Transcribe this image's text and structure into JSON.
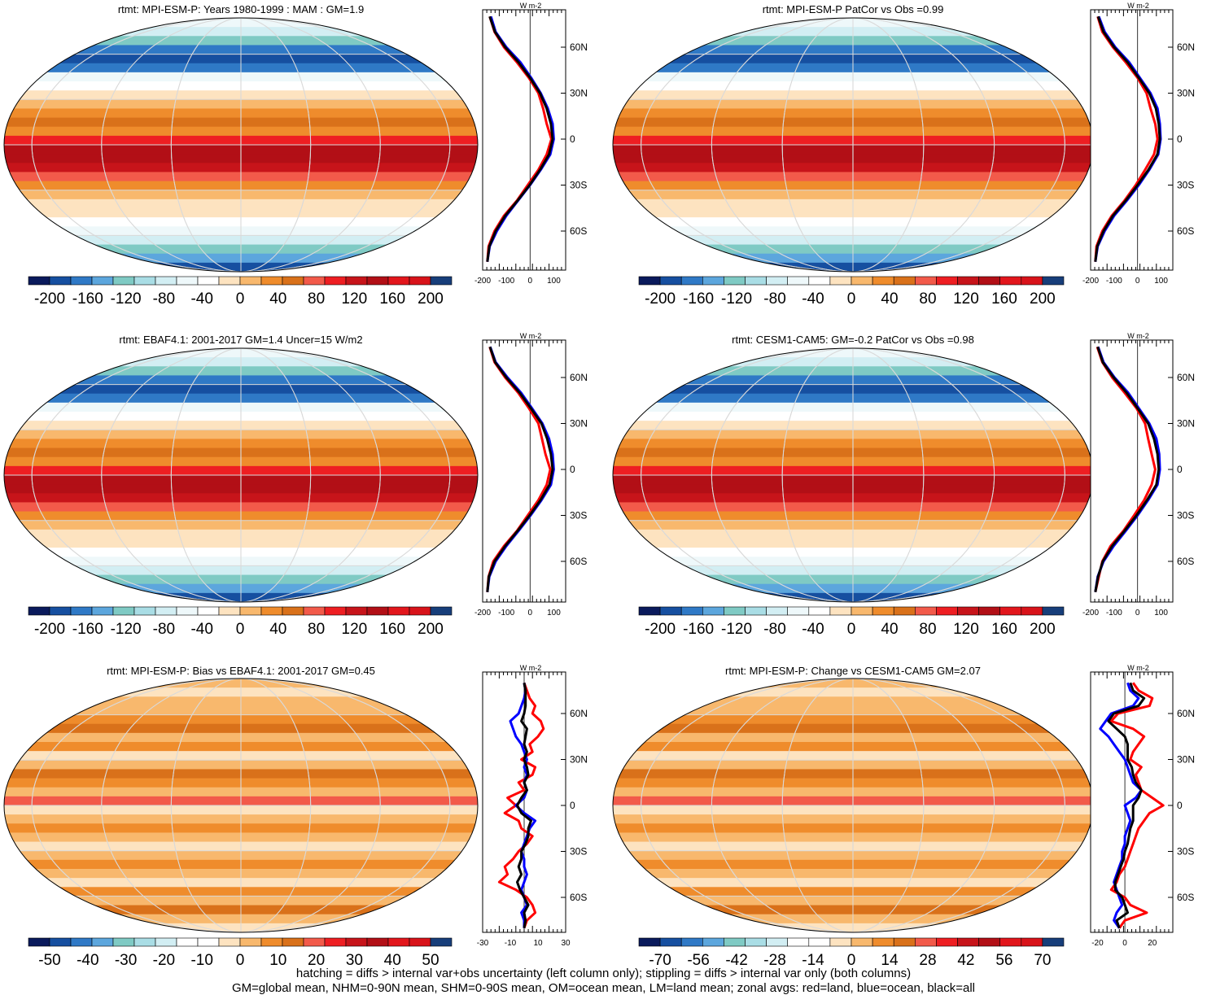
{
  "palette": {
    "abs": [
      "#0a1a5c",
      "#164fa0",
      "#2f79c6",
      "#5ca6dd",
      "#7fcac4",
      "#a9dde5",
      "#d2eef3",
      "#eef8fa",
      "#ffffff",
      "#fde3c0",
      "#f8b86d",
      "#ef8c2c",
      "#d9711a",
      "#f25a4a",
      "#ee1e22",
      "#c7141a",
      "#b20f16",
      "#e2161c",
      "#d8131a",
      "#173e7a"
    ],
    "diff": [
      "#0a1a5c",
      "#164fa0",
      "#2f79c6",
      "#5ca6dd",
      "#7fcac4",
      "#a9dde5",
      "#d2eef3",
      "#ffffff",
      "#ffffff",
      "#fde3c0",
      "#f8b86d",
      "#ef8c2c",
      "#d9711a",
      "#f25a4a",
      "#ee1e22",
      "#c7141a",
      "#b20f16",
      "#e2161c",
      "#d8131a",
      "#173e7a"
    ],
    "zonal": {
      "land": "#ff0000",
      "ocean": "#0000ff",
      "all": "#000000"
    }
  },
  "panels": [
    {
      "id": "p1",
      "title": "rtmt: MPI-ESM-P: Years 1980-1999 : MAM : GM=1.9",
      "colorbar_ticks": [
        "-200",
        "-160",
        "-120",
        "-80",
        "-40",
        "0",
        "40",
        "80",
        "120",
        "160",
        "200"
      ],
      "zonal_ticks": [
        "-200",
        "-100",
        "0",
        "100"
      ],
      "zonal_unit": "W m-2",
      "lat_labels": [
        "60N",
        "30N",
        "0",
        "30S",
        "60S"
      ],
      "scale": "abs"
    },
    {
      "id": "p2",
      "title": "rtmt: MPI-ESM-P PatCor vs Obs =0.99",
      "colorbar_ticks": [
        "-200",
        "-160",
        "-120",
        "-80",
        "-40",
        "0",
        "40",
        "80",
        "120",
        "160",
        "200"
      ],
      "zonal_ticks": [
        "-200",
        "-100",
        "0",
        "100"
      ],
      "zonal_unit": "W m-2",
      "lat_labels": [
        "60N",
        "30N",
        "0",
        "30S",
        "60S"
      ],
      "scale": "abs"
    },
    {
      "id": "p3",
      "title": "rtmt: EBAF4.1: 2001-2017 GM=1.4 Uncer=15 W/m2",
      "colorbar_ticks": [
        "-200",
        "-160",
        "-120",
        "-80",
        "-40",
        "0",
        "40",
        "80",
        "120",
        "160",
        "200"
      ],
      "zonal_ticks": [
        "-200",
        "-100",
        "0",
        "100"
      ],
      "zonal_unit": "W m-2",
      "lat_labels": [
        "60N",
        "30N",
        "0",
        "30S",
        "60S"
      ],
      "scale": "abs"
    },
    {
      "id": "p4",
      "title": "rtmt: CESM1-CAM5: GM=-0.2 PatCor vs Obs =0.98",
      "colorbar_ticks": [
        "-200",
        "-160",
        "-120",
        "-80",
        "-40",
        "0",
        "40",
        "80",
        "120",
        "160",
        "200"
      ],
      "zonal_ticks": [
        "-200",
        "-100",
        "0",
        "100"
      ],
      "zonal_unit": "W m-2",
      "lat_labels": [
        "60N",
        "30N",
        "0",
        "30S",
        "60S"
      ],
      "scale": "abs"
    },
    {
      "id": "p5",
      "title": "rtmt: MPI-ESM-P: Bias vs EBAF4.1: 2001-2017 GM=0.45",
      "colorbar_ticks": [
        "-50",
        "-40",
        "-30",
        "-20",
        "-10",
        "0",
        "10",
        "20",
        "30",
        "40",
        "50"
      ],
      "zonal_ticks": [
        "-30",
        "-10",
        "10",
        "30"
      ],
      "zonal_unit": "W m-2",
      "lat_labels": [
        "60N",
        "30N",
        "0",
        "30S",
        "60S"
      ],
      "scale": "diff"
    },
    {
      "id": "p6",
      "title": "rtmt: MPI-ESM-P: Change vs CESM1-CAM5 GM=2.07",
      "colorbar_ticks": [
        "-70",
        "-56",
        "-42",
        "-28",
        "-14",
        "0",
        "14",
        "28",
        "42",
        "56",
        "70"
      ],
      "zonal_ticks": [
        "-20",
        "0",
        "20"
      ],
      "zonal_unit": "W m-2",
      "lat_labels": [
        "60N",
        "30N",
        "0",
        "30S",
        "60S"
      ],
      "scale": "diff"
    }
  ],
  "chart_data": [
    {
      "type": "heatmap",
      "title": "rtmt: MPI-ESM-P: Years 1980-1999 : MAM : GM=1.9",
      "projection": "Robinson",
      "zonal": {
        "lat": [
          80,
          70,
          60,
          50,
          40,
          30,
          20,
          10,
          0,
          -10,
          -20,
          -30,
          -40,
          -50,
          -60,
          -70,
          -80
        ],
        "land": [
          -170,
          -150,
          -110,
          -55,
          -5,
          35,
          55,
          70,
          90,
          70,
          35,
          -10,
          -55,
          -110,
          -150,
          -175,
          -180
        ],
        "ocean": [
          -165,
          -145,
          -100,
          -40,
          5,
          45,
          75,
          95,
          100,
          85,
          45,
          0,
          -50,
          -100,
          -140,
          -170,
          -180
        ],
        "all": [
          -170,
          -148,
          -105,
          -48,
          0,
          42,
          70,
          88,
          95,
          80,
          42,
          -2,
          -52,
          -105,
          -145,
          -172,
          -180
        ]
      }
    },
    {
      "type": "heatmap",
      "title": "rtmt: MPI-ESM-P PatCor vs Obs =0.99",
      "projection": "Robinson",
      "zonal": {
        "lat": [
          80,
          70,
          60,
          50,
          40,
          30,
          20,
          10,
          0,
          -10,
          -20,
          -30,
          -40,
          -50,
          -60,
          -70,
          -80
        ],
        "land": [
          -170,
          -150,
          -105,
          -50,
          0,
          38,
          55,
          75,
          85,
          70,
          32,
          -8,
          -55,
          -110,
          -150,
          -175,
          -180
        ],
        "ocean": [
          -165,
          -140,
          -95,
          -35,
          10,
          55,
          85,
          95,
          98,
          88,
          50,
          5,
          -45,
          -100,
          -140,
          -170,
          -180
        ],
        "all": [
          -168,
          -145,
          -100,
          -42,
          5,
          50,
          78,
          90,
          95,
          84,
          46,
          0,
          -50,
          -105,
          -145,
          -172,
          -180
        ]
      }
    },
    {
      "type": "heatmap",
      "title": "rtmt: EBAF4.1: 2001-2017 GM=1.4 Uncer=15 W/m2",
      "projection": "Robinson",
      "zonal": {
        "lat": [
          80,
          70,
          60,
          50,
          40,
          30,
          20,
          10,
          0,
          -10,
          -20,
          -30,
          -40,
          -50,
          -60,
          -70,
          -80
        ],
        "land": [
          -170,
          -150,
          -105,
          -50,
          -5,
          35,
          50,
          65,
          85,
          70,
          35,
          -10,
          -55,
          -110,
          -155,
          -175,
          -180
        ],
        "ocean": [
          -168,
          -145,
          -95,
          -38,
          8,
          52,
          80,
          95,
          100,
          88,
          48,
          2,
          -48,
          -100,
          -145,
          -172,
          -180
        ],
        "all": [
          -169,
          -147,
          -100,
          -44,
          3,
          48,
          72,
          88,
          95,
          82,
          44,
          -2,
          -52,
          -105,
          -150,
          -174,
          -180
        ]
      }
    },
    {
      "type": "heatmap",
      "title": "rtmt: CESM1-CAM5: GM=-0.2 PatCor vs Obs =0.98",
      "projection": "Robinson",
      "zonal": {
        "lat": [
          80,
          70,
          60,
          50,
          40,
          30,
          20,
          10,
          0,
          -10,
          -20,
          -30,
          -40,
          -50,
          -60,
          -70,
          -80
        ],
        "land": [
          -172,
          -150,
          -108,
          -55,
          -5,
          32,
          45,
          60,
          75,
          60,
          28,
          -15,
          -60,
          -115,
          -150,
          -165,
          -180
        ],
        "ocean": [
          -168,
          -145,
          -98,
          -40,
          5,
          50,
          80,
          92,
          95,
          85,
          45,
          0,
          -50,
          -102,
          -145,
          -170,
          -180
        ],
        "all": [
          -170,
          -148,
          -102,
          -47,
          0,
          45,
          70,
          85,
          90,
          80,
          40,
          -5,
          -55,
          -108,
          -148,
          -168,
          -180
        ]
      }
    },
    {
      "type": "heatmap",
      "title": "rtmt: MPI-ESM-P: Bias vs EBAF4.1: 2001-2017 GM=0.45",
      "projection": "Robinson",
      "zonal": {
        "lat": [
          80,
          75,
          70,
          65,
          60,
          55,
          50,
          45,
          40,
          35,
          30,
          25,
          20,
          15,
          10,
          5,
          0,
          -5,
          -10,
          -15,
          -20,
          -25,
          -30,
          -35,
          -40,
          -45,
          -50,
          -55,
          -60,
          -65,
          -70,
          -75,
          -80
        ],
        "land": [
          0,
          2,
          4,
          8,
          6,
          12,
          14,
          10,
          4,
          6,
          -2,
          8,
          6,
          -4,
          0,
          -12,
          -6,
          -14,
          -4,
          -2,
          6,
          2,
          -4,
          -8,
          -14,
          -12,
          -18,
          -6,
          2,
          6,
          8,
          2,
          0
        ],
        "ocean": [
          0,
          1,
          0,
          -2,
          -4,
          -10,
          -8,
          -6,
          -2,
          0,
          2,
          0,
          2,
          0,
          2,
          0,
          -6,
          0,
          8,
          4,
          2,
          0,
          -2,
          0,
          0,
          2,
          0,
          -2,
          0,
          2,
          -2,
          0,
          0
        ],
        "all": [
          0,
          1,
          1,
          1,
          0,
          -2,
          2,
          1,
          0,
          2,
          0,
          2,
          3,
          0,
          2,
          -2,
          -5,
          -2,
          5,
          3,
          3,
          1,
          -2,
          -2,
          -4,
          -2,
          -5,
          -3,
          0,
          3,
          0,
          1,
          0
        ]
      }
    },
    {
      "type": "heatmap",
      "title": "rtmt: MPI-ESM-P: Change vs CESM1-CAM5 GM=2.07",
      "projection": "Robinson",
      "zonal": {
        "lat": [
          80,
          75,
          70,
          65,
          60,
          55,
          50,
          45,
          40,
          35,
          30,
          25,
          20,
          15,
          10,
          5,
          0,
          -5,
          -10,
          -15,
          -20,
          -25,
          -30,
          -35,
          -40,
          -45,
          -50,
          -55,
          -60,
          -65,
          -70,
          -75,
          -80
        ],
        "land": [
          6,
          10,
          20,
          18,
          -5,
          -10,
          6,
          14,
          10,
          6,
          4,
          12,
          8,
          10,
          12,
          20,
          28,
          18,
          14,
          10,
          8,
          6,
          4,
          2,
          0,
          -4,
          -6,
          -10,
          0,
          4,
          16,
          0,
          -4
        ],
        "ocean": [
          2,
          4,
          10,
          6,
          -10,
          -14,
          -18,
          -12,
          -8,
          -4,
          0,
          2,
          4,
          6,
          12,
          8,
          0,
          2,
          4,
          2,
          0,
          0,
          -2,
          -2,
          -4,
          -6,
          -8,
          -6,
          -4,
          -2,
          -6,
          -8,
          -4
        ],
        "all": [
          4,
          6,
          14,
          10,
          -8,
          -12,
          -6,
          0,
          2,
          2,
          2,
          5,
          6,
          8,
          12,
          10,
          6,
          6,
          6,
          4,
          3,
          2,
          0,
          -1,
          -3,
          -5,
          -7,
          -7,
          -2,
          0,
          2,
          -6,
          -4
        ]
      }
    }
  ],
  "footnote": {
    "line1": "hatching = diffs > internal var+obs uncertainty (left column only); stippling = diffs > internal var only (both columns)",
    "line2": "GM=global mean, NHM=0-90N mean, SHM=0-90S mean, OM=ocean mean, LM=land mean; zonal avgs: red=land, blue=ocean, black=all"
  }
}
